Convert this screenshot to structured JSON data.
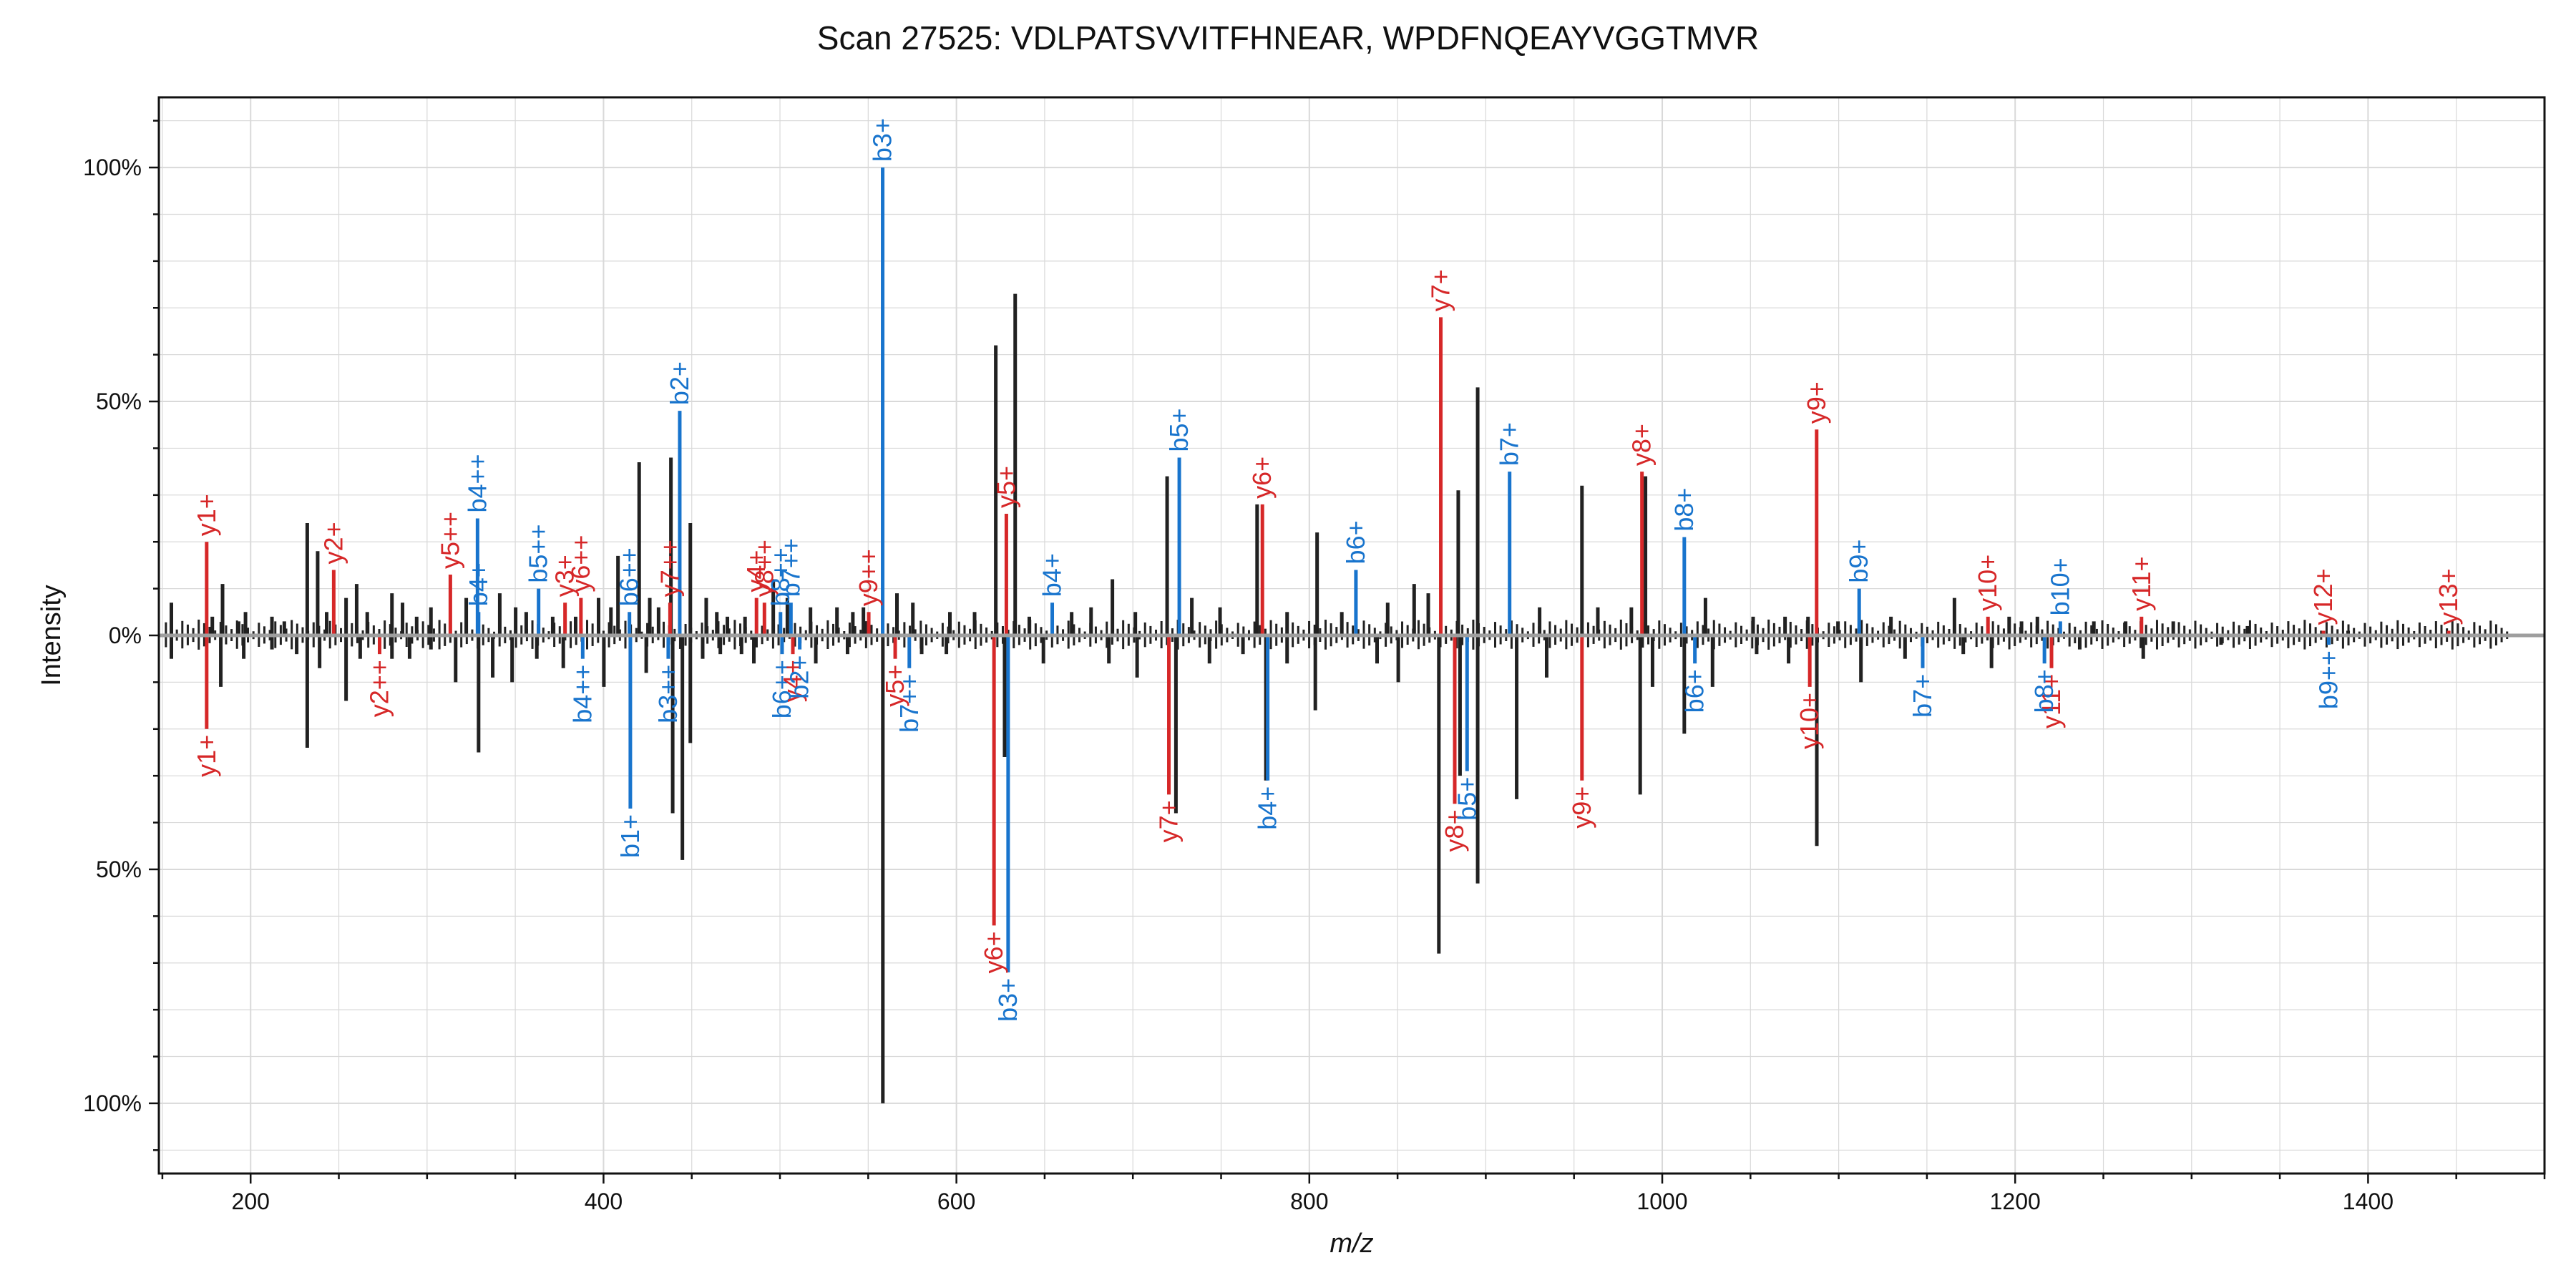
{
  "title": "Scan 27525: VDLPATSVVITFHNEAR, WPDFNQEAYVGGTMVR",
  "colors": {
    "y_ion": "#d62728",
    "b_ion": "#1874cd",
    "unannotated": "#212121",
    "baseline": "#9e9e9e",
    "grid": "#d9d9d9"
  },
  "chart_data": {
    "type": "mirror-spectrum",
    "title": "Scan 27525: VDLPATSVVITFHNEAR, WPDFNQEAYVGGTMVR",
    "xlabel": "m/z",
    "ylabel": "Intensity",
    "xlim": [
      148,
      1500
    ],
    "ylim": [
      -115,
      115
    ],
    "x_ticks": [
      200,
      400,
      600,
      800,
      1000,
      1200,
      1400
    ],
    "y_ticks": [
      {
        "value": 100,
        "label": "100%"
      },
      {
        "value": 50,
        "label": "50%"
      },
      {
        "value": 0,
        "label": "0%"
      },
      {
        "value": -50,
        "label": "50%"
      },
      {
        "value": -100,
        "label": "100%"
      }
    ],
    "grid": true,
    "top_peaks": [
      {
        "mz": 175.1,
        "i": 20,
        "type": "y",
        "label": "y1+"
      },
      {
        "mz": 247.1,
        "i": 14,
        "type": "y",
        "label": "y2+"
      },
      {
        "mz": 313.2,
        "i": 13,
        "type": "y",
        "label": "y5++"
      },
      {
        "mz": 328.6,
        "i": 25,
        "type": "b",
        "label": "b4++"
      },
      {
        "mz": 329.2,
        "i": 5,
        "type": "b",
        "label": "b4+"
      },
      {
        "mz": 363.2,
        "i": 10,
        "type": "b",
        "label": "b5++"
      },
      {
        "mz": 378.2,
        "i": 7,
        "type": "y",
        "label": "y3+"
      },
      {
        "mz": 387.2,
        "i": 8,
        "type": "y",
        "label": "y6++"
      },
      {
        "mz": 414.7,
        "i": 5,
        "type": "b",
        "label": "b6++"
      },
      {
        "mz": 437.7,
        "i": 7,
        "type": "y",
        "label": "y7++"
      },
      {
        "mz": 443.2,
        "i": 48,
        "type": "b",
        "label": "b2+"
      },
      {
        "mz": 486.7,
        "i": 8,
        "type": "y",
        "label": "y4+"
      },
      {
        "mz": 491.2,
        "i": 7,
        "type": "y",
        "label": "y8++"
      },
      {
        "mz": 500.3,
        "i": 5,
        "type": "b",
        "label": "b8++"
      },
      {
        "mz": 506.2,
        "i": 7,
        "type": "b",
        "label": "b7++"
      },
      {
        "mz": 550.3,
        "i": 5,
        "type": "y",
        "label": "y9++"
      },
      {
        "mz": 558.2,
        "i": 100,
        "type": "b",
        "label": "b3+"
      },
      {
        "mz": 628.3,
        "i": 26,
        "type": "y",
        "label": "y5+"
      },
      {
        "mz": 654.3,
        "i": 7,
        "type": "b",
        "label": "b4+"
      },
      {
        "mz": 726.3,
        "i": 38,
        "type": "b",
        "label": "b5+"
      },
      {
        "mz": 773.4,
        "i": 28,
        "type": "y",
        "label": "y6+"
      },
      {
        "mz": 826.4,
        "i": 14,
        "type": "b",
        "label": "b6+"
      },
      {
        "mz": 874.5,
        "i": 68,
        "type": "y",
        "label": "y7+"
      },
      {
        "mz": 913.5,
        "i": 35,
        "type": "b",
        "label": "b7+"
      },
      {
        "mz": 988.5,
        "i": 35,
        "type": "y",
        "label": "y8+"
      },
      {
        "mz": 1012.5,
        "i": 21,
        "type": "b",
        "label": "b8+"
      },
      {
        "mz": 1087.5,
        "i": 44,
        "type": "y",
        "label": "y9+"
      },
      {
        "mz": 1111.6,
        "i": 10,
        "type": "b",
        "label": "b9+"
      },
      {
        "mz": 1184.6,
        "i": 4,
        "type": "y",
        "label": "y10+"
      },
      {
        "mz": 1225.6,
        "i": 3,
        "type": "b",
        "label": "b10+"
      },
      {
        "mz": 1271.6,
        "i": 4,
        "type": "y",
        "label": "y11+"
      },
      {
        "mz": 1374.7,
        "i": 1,
        "type": "y",
        "label": "y12+"
      },
      {
        "mz": 1445.7,
        "i": 1,
        "type": "y",
        "label": "y13+"
      }
    ],
    "bottom_peaks": [
      {
        "mz": 175.1,
        "i": 20,
        "type": "y",
        "label": "y1+"
      },
      {
        "mz": 273.1,
        "i": 4,
        "type": "y",
        "label": "y2++"
      },
      {
        "mz": 388.2,
        "i": 5,
        "type": "b",
        "label": "b4++"
      },
      {
        "mz": 415.2,
        "i": 37,
        "type": "b",
        "label": "b1+"
      },
      {
        "mz": 436.7,
        "i": 5,
        "type": "b",
        "label": "b3++"
      },
      {
        "mz": 501.2,
        "i": 4,
        "type": "b",
        "label": "b6++"
      },
      {
        "mz": 507.3,
        "i": 4,
        "type": "y",
        "label": "y4+"
      },
      {
        "mz": 511.2,
        "i": 3,
        "type": "b",
        "label": "b2+"
      },
      {
        "mz": 565.3,
        "i": 5,
        "type": "y",
        "label": "y5+"
      },
      {
        "mz": 573.3,
        "i": 7,
        "type": "b",
        "label": "b7++"
      },
      {
        "mz": 621.3,
        "i": 62,
        "type": "y",
        "label": "y6+"
      },
      {
        "mz": 629.3,
        "i": 72,
        "type": "b",
        "label": "b3+"
      },
      {
        "mz": 720.4,
        "i": 34,
        "type": "y",
        "label": "y7+"
      },
      {
        "mz": 776.4,
        "i": 31,
        "type": "b",
        "label": "b4+"
      },
      {
        "mz": 882.4,
        "i": 36,
        "type": "y",
        "label": "y8+"
      },
      {
        "mz": 889.4,
        "i": 29,
        "type": "b",
        "label": "b5+"
      },
      {
        "mz": 954.5,
        "i": 31,
        "type": "y",
        "label": "y9+"
      },
      {
        "mz": 1018.5,
        "i": 6,
        "type": "b",
        "label": "b6+"
      },
      {
        "mz": 1083.6,
        "i": 11,
        "type": "y",
        "label": "y10+"
      },
      {
        "mz": 1147.6,
        "i": 7,
        "type": "b",
        "label": "b7+"
      },
      {
        "mz": 1220.6,
        "i": 7,
        "type": "y",
        "label": "y11+"
      },
      {
        "mz": 1216.6,
        "i": 6,
        "type": "b",
        "label": "b8+"
      },
      {
        "mz": 1377.7,
        "i": 2,
        "type": "b",
        "label": "b9++"
      }
    ],
    "top_unannotated": [
      [
        155.1,
        7
      ],
      [
        178.3,
        4
      ],
      [
        184.1,
        11
      ],
      [
        193.2,
        3
      ],
      [
        197.1,
        5
      ],
      [
        212.1,
        4
      ],
      [
        219.1,
        3
      ],
      [
        232.1,
        24
      ],
      [
        238.0,
        18
      ],
      [
        243.1,
        5
      ],
      [
        254.1,
        8
      ],
      [
        260.1,
        11
      ],
      [
        266.1,
        5
      ],
      [
        280.1,
        9
      ],
      [
        286.1,
        7
      ],
      [
        294.1,
        4
      ],
      [
        302.2,
        6
      ],
      [
        322.2,
        8
      ],
      [
        341.2,
        9
      ],
      [
        350.2,
        6
      ],
      [
        356.2,
        5
      ],
      [
        371.2,
        4
      ],
      [
        384.2,
        4
      ],
      [
        397.2,
        8
      ],
      [
        404.2,
        6
      ],
      [
        408.2,
        17
      ],
      [
        420.2,
        37
      ],
      [
        426.2,
        8
      ],
      [
        431.2,
        6
      ],
      [
        438.2,
        38
      ],
      [
        449.2,
        24
      ],
      [
        458.2,
        8
      ],
      [
        464.2,
        5
      ],
      [
        470.2,
        4
      ],
      [
        480.2,
        4
      ],
      [
        496.2,
        12
      ],
      [
        504.2,
        8
      ],
      [
        517.3,
        6
      ],
      [
        532.3,
        6
      ],
      [
        541.3,
        5
      ],
      [
        547.3,
        6
      ],
      [
        566.3,
        9
      ],
      [
        575.3,
        7
      ],
      [
        596.3,
        5
      ],
      [
        610.3,
        5
      ],
      [
        622.3,
        62
      ],
      [
        633.3,
        73
      ],
      [
        641.3,
        4
      ],
      [
        665.3,
        5
      ],
      [
        676.3,
        6
      ],
      [
        688.4,
        12
      ],
      [
        701.4,
        5
      ],
      [
        719.4,
        34
      ],
      [
        733.4,
        8
      ],
      [
        749.4,
        6
      ],
      [
        770.4,
        28
      ],
      [
        787.4,
        5
      ],
      [
        804.4,
        22
      ],
      [
        818.4,
        5
      ],
      [
        844.4,
        7
      ],
      [
        859.4,
        11
      ],
      [
        867.4,
        9
      ],
      [
        884.4,
        31
      ],
      [
        895.4,
        53
      ],
      [
        930.5,
        6
      ],
      [
        954.5,
        32
      ],
      [
        963.5,
        6
      ],
      [
        982.5,
        6
      ],
      [
        990.5,
        34
      ],
      [
        1024.5,
        8
      ],
      [
        1051.5,
        4
      ],
      [
        1069.6,
        4
      ],
      [
        1082.6,
        4
      ],
      [
        1099.6,
        3
      ],
      [
        1129.6,
        4
      ],
      [
        1165.6,
        8
      ],
      [
        1196.6,
        4
      ],
      [
        1203.6,
        3
      ],
      [
        1212.6,
        4
      ],
      [
        1244.6,
        3
      ],
      [
        1262.6,
        3
      ],
      [
        1289.6,
        3
      ],
      [
        1331.7,
        2
      ],
      [
        1388.7,
        1
      ]
    ],
    "bottom_unannotated": [
      [
        155.1,
        5
      ],
      [
        183.1,
        11
      ],
      [
        196.1,
        5
      ],
      [
        212.1,
        3
      ],
      [
        226.1,
        4
      ],
      [
        232.1,
        24
      ],
      [
        239.1,
        7
      ],
      [
        254.1,
        14
      ],
      [
        262.1,
        5
      ],
      [
        280.1,
        5
      ],
      [
        290.1,
        5
      ],
      [
        302.2,
        3
      ],
      [
        316.2,
        10
      ],
      [
        329.2,
        25
      ],
      [
        337.2,
        9
      ],
      [
        348.2,
        10
      ],
      [
        362.2,
        5
      ],
      [
        377.2,
        7
      ],
      [
        400.2,
        11
      ],
      [
        424.2,
        8
      ],
      [
        439.2,
        38
      ],
      [
        444.7,
        48
      ],
      [
        449.2,
        23
      ],
      [
        456.2,
        5
      ],
      [
        466.2,
        4
      ],
      [
        478.2,
        4
      ],
      [
        485.2,
        6
      ],
      [
        520.3,
        6
      ],
      [
        538.3,
        4
      ],
      [
        558.3,
        100
      ],
      [
        580.3,
        4
      ],
      [
        594.3,
        4
      ],
      [
        627.3,
        26
      ],
      [
        649.3,
        6
      ],
      [
        686.4,
        6
      ],
      [
        702.4,
        9
      ],
      [
        724.4,
        38
      ],
      [
        743.4,
        6
      ],
      [
        762.4,
        4
      ],
      [
        775.4,
        31
      ],
      [
        787.4,
        6
      ],
      [
        803.4,
        16
      ],
      [
        838.4,
        6
      ],
      [
        850.4,
        10
      ],
      [
        873.4,
        68
      ],
      [
        885.4,
        30
      ],
      [
        895.4,
        53
      ],
      [
        917.5,
        35
      ],
      [
        934.5,
        9
      ],
      [
        987.5,
        34
      ],
      [
        994.5,
        11
      ],
      [
        1012.5,
        21
      ],
      [
        1028.5,
        11
      ],
      [
        1053.5,
        4
      ],
      [
        1071.6,
        6
      ],
      [
        1087.6,
        45
      ],
      [
        1112.6,
        10
      ],
      [
        1137.6,
        5
      ],
      [
        1170.6,
        4
      ],
      [
        1186.6,
        7
      ],
      [
        1236.6,
        3
      ],
      [
        1272.6,
        5
      ],
      [
        1316.7,
        2
      ]
    ]
  }
}
